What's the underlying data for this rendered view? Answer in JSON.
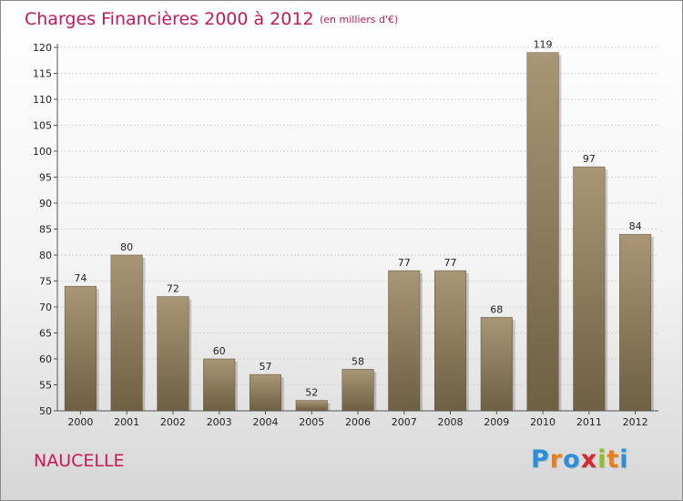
{
  "title": "Charges Financières 2000 à 2012",
  "unit": "(en milliers d'€)",
  "commune": "NAUCELLE",
  "logo": {
    "letters": [
      "P",
      "r",
      "o",
      "x",
      "i",
      "t",
      "i"
    ],
    "colors": [
      "#2a8fd8",
      "#e8801c",
      "#2a8fd8",
      "#d9262a",
      "#8cbf26",
      "#e8801c",
      "#2a8fd8"
    ]
  },
  "chart_data": {
    "type": "bar",
    "title": "Charges Financières 2000 à 2012",
    "subtitle": "(en milliers d'€)",
    "categories": [
      "2000",
      "2001",
      "2002",
      "2003",
      "2004",
      "2005",
      "2006",
      "2007",
      "2008",
      "2009",
      "2010",
      "2011",
      "2012"
    ],
    "values": [
      74,
      80,
      72,
      60,
      57,
      52,
      58,
      77,
      77,
      68,
      119,
      97,
      84
    ],
    "ylim": [
      50,
      120
    ],
    "yticks": [
      50,
      55,
      60,
      65,
      70,
      75,
      80,
      85,
      90,
      95,
      100,
      105,
      110,
      115,
      120
    ],
    "grid": true,
    "bar_color": "#8c7b5e"
  }
}
